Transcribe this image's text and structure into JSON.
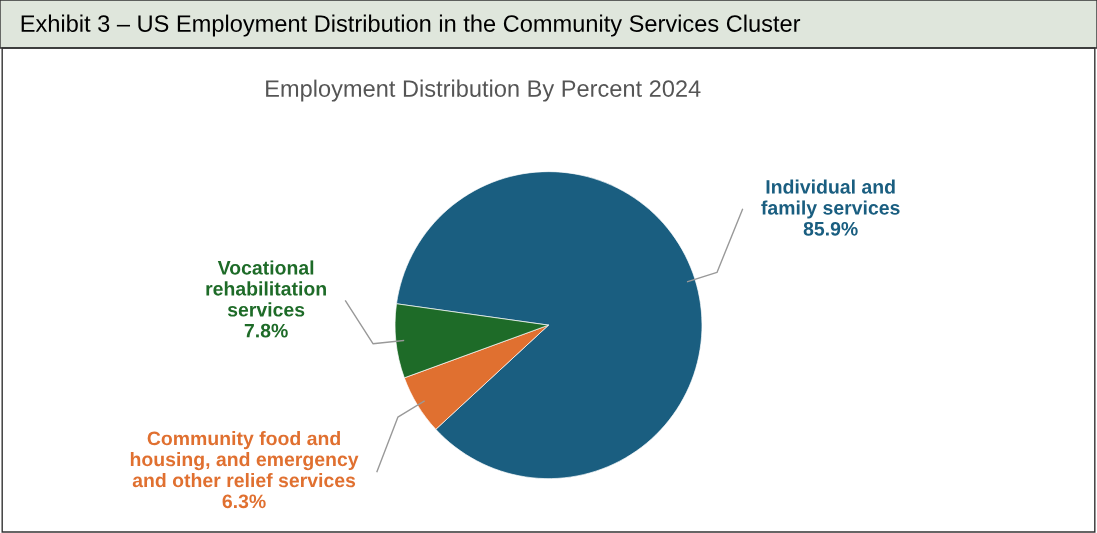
{
  "chart_data": {
    "type": "pie",
    "title": "Exhibit 3 – US Employment Distribution in the Community Services Cluster",
    "subtitle": "Employment Distribution By Percent 2024",
    "categories": [
      "Individual and\nfamily services",
      "Community food and\nhousing, and emergency\nand other relief services",
      "Vocational\nrehabilitation\nservices"
    ],
    "values": [
      85.9,
      6.3,
      7.8
    ],
    "colors": [
      "#1a5e80",
      "#e07030",
      "#1e6b28"
    ],
    "value_labels": [
      "85.9%",
      "6.3%",
      "7.8%"
    ],
    "legend": false
  }
}
